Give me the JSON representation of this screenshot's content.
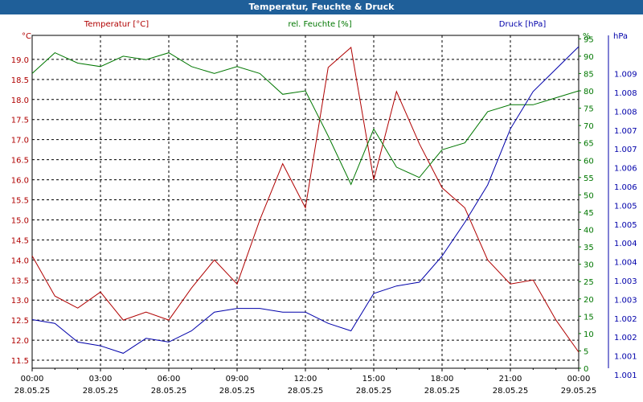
{
  "window": {
    "title": "Temperatur, Feuchte & Druck"
  },
  "colors": {
    "temperature": "#b00000",
    "humidity": "#007700",
    "pressure": "#0000aa",
    "titlebar": "#1f5f99"
  },
  "chart_data": {
    "type": "line",
    "title": "Temperatur, Feuchte & Druck",
    "x_ticks": [
      {
        "time": "00:00",
        "date": "28.05.25"
      },
      {
        "time": "03:00",
        "date": "28.05.25"
      },
      {
        "time": "06:00",
        "date": "28.05.25"
      },
      {
        "time": "09:00",
        "date": "28.05.25"
      },
      {
        "time": "12:00",
        "date": "28.05.25"
      },
      {
        "time": "15:00",
        "date": "28.05.25"
      },
      {
        "time": "18:00",
        "date": "28.05.25"
      },
      {
        "time": "21:00",
        "date": "28.05.25"
      },
      {
        "time": "00:00",
        "date": "29.05.25"
      }
    ],
    "x_hours": [
      0,
      1,
      2,
      3,
      4,
      5,
      6,
      7,
      8,
      9,
      10,
      11,
      12,
      13,
      14,
      15,
      16,
      17,
      18,
      19,
      20,
      21,
      22,
      23,
      24
    ],
    "grid": true,
    "axes": {
      "temperature": {
        "label": "Temperatur [°C]",
        "unit": "°C",
        "ylim": [
          11.3,
          19.6
        ],
        "ticks": [
          "11.5",
          "12.0",
          "12.5",
          "13.0",
          "13.5",
          "14.0",
          "14.5",
          "15.0",
          "15.5",
          "16.0",
          "16.5",
          "17.0",
          "17.5",
          "18.0",
          "18.5",
          "19.0"
        ]
      },
      "humidity": {
        "label": "rel. Feuchte [%]",
        "unit": "%",
        "ylim": [
          0,
          96
        ],
        "ticks": [
          "0",
          "5",
          "10",
          "15",
          "20",
          "25",
          "30",
          "35",
          "40",
          "45",
          "50",
          "55",
          "60",
          "65",
          "70",
          "75",
          "80",
          "85",
          "90",
          "95"
        ]
      },
      "pressure": {
        "label": "Druck [hPa]",
        "unit": "hPa",
        "ylim": [
          1000.6,
          1009.5
        ],
        "ticks": [
          "1.001",
          "1.001",
          "1.002",
          "1.002",
          "1.003",
          "1.003",
          "1.004",
          "1.004",
          "1.005",
          "1.005",
          "1.006",
          "1.006",
          "1.007",
          "1.007",
          "1.008",
          "1.008",
          "1.009"
        ]
      }
    },
    "series": [
      {
        "name": "Temperatur [°C]",
        "axis": "temperature",
        "values": [
          14.1,
          13.1,
          12.8,
          13.2,
          12.5,
          12.7,
          12.5,
          13.3,
          14.0,
          13.4,
          15.0,
          16.4,
          15.3,
          18.8,
          19.3,
          16.0,
          18.2,
          16.9,
          15.8,
          15.3,
          14.0,
          13.4,
          13.5,
          12.5,
          11.7
        ]
      },
      {
        "name": "rel. Feuchte [%]",
        "axis": "humidity",
        "values": [
          85,
          91,
          88,
          87,
          90,
          89,
          91,
          87,
          85,
          87,
          85,
          79,
          80,
          67,
          53,
          69,
          58,
          55,
          63,
          65,
          74,
          76,
          76,
          78,
          80
        ]
      },
      {
        "name": "Druck [hPa]",
        "axis": "pressure",
        "values": [
          1001.9,
          1001.8,
          1001.3,
          1001.2,
          1001.0,
          1001.4,
          1001.3,
          1001.6,
          1002.1,
          1002.2,
          1002.2,
          1002.1,
          1002.1,
          1001.8,
          1001.6,
          1002.6,
          1002.8,
          1002.9,
          1003.6,
          1004.5,
          1005.5,
          1007.0,
          1008.0,
          1008.6,
          1009.2
        ]
      }
    ]
  }
}
